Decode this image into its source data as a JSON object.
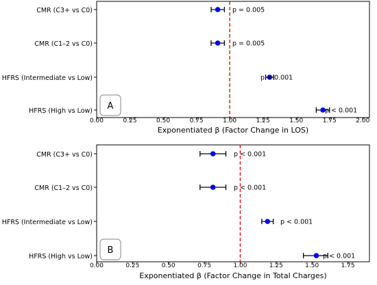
{
  "chart_data": [
    {
      "type": "scatter",
      "panel_label": "A",
      "xlabel": "Exponentiated β (Factor Change in LOS)",
      "xlim": [
        0.0,
        2.05
      ],
      "xticks": [
        "0.00",
        "0.25",
        "0.50",
        "0.75",
        "1.00",
        "1.25",
        "1.50",
        "1.75",
        "2.00"
      ],
      "reference_line": 1.0,
      "rows": [
        {
          "label": "CMR (C3+ vs C0)",
          "estimate": 0.91,
          "ci": [
            0.86,
            0.96
          ],
          "pvalue": "p = 0.005"
        },
        {
          "label": "CMR (C1–2 vs C0)",
          "estimate": 0.91,
          "ci": [
            0.86,
            0.96
          ],
          "pvalue": "p = 0.005"
        },
        {
          "label": "HFRS (Intermediate vs Low)",
          "estimate": 1.3,
          "ci": [
            1.27,
            1.33
          ],
          "pvalue": "p < 0.001"
        },
        {
          "label": "HFRS (High vs Low)",
          "estimate": 1.7,
          "ci": [
            1.65,
            1.75
          ],
          "pvalue": "p < 0.001"
        }
      ]
    },
    {
      "type": "scatter",
      "panel_label": "B",
      "xlabel": "Exponentiated β (Factor Change in Total Charges)",
      "xlim": [
        0.0,
        1.9
      ],
      "xticks": [
        "0.00",
        "0.25",
        "0.50",
        "0.75",
        "1.00",
        "1.25",
        "1.50",
        "1.75"
      ],
      "reference_line": 1.0,
      "rows": [
        {
          "label": "CMR (C3+ vs C0)",
          "estimate": 0.81,
          "ci": [
            0.72,
            0.9
          ],
          "pvalue": "p < 0.001"
        },
        {
          "label": "CMR (C1–2 vs C0)",
          "estimate": 0.81,
          "ci": [
            0.72,
            0.9
          ],
          "pvalue": "p < 0.001"
        },
        {
          "label": "HFRS (Intermediate vs Low)",
          "estimate": 1.19,
          "ci": [
            1.15,
            1.23
          ],
          "pvalue": "p < 0.001"
        },
        {
          "label": "HFRS (High vs Low)",
          "estimate": 1.53,
          "ci": [
            1.44,
            1.61
          ],
          "pvalue": "p < 0.001"
        }
      ]
    }
  ],
  "colors": {
    "point": "#0000ee",
    "errorbar": "#000000",
    "reference_line": "#dd1111"
  }
}
